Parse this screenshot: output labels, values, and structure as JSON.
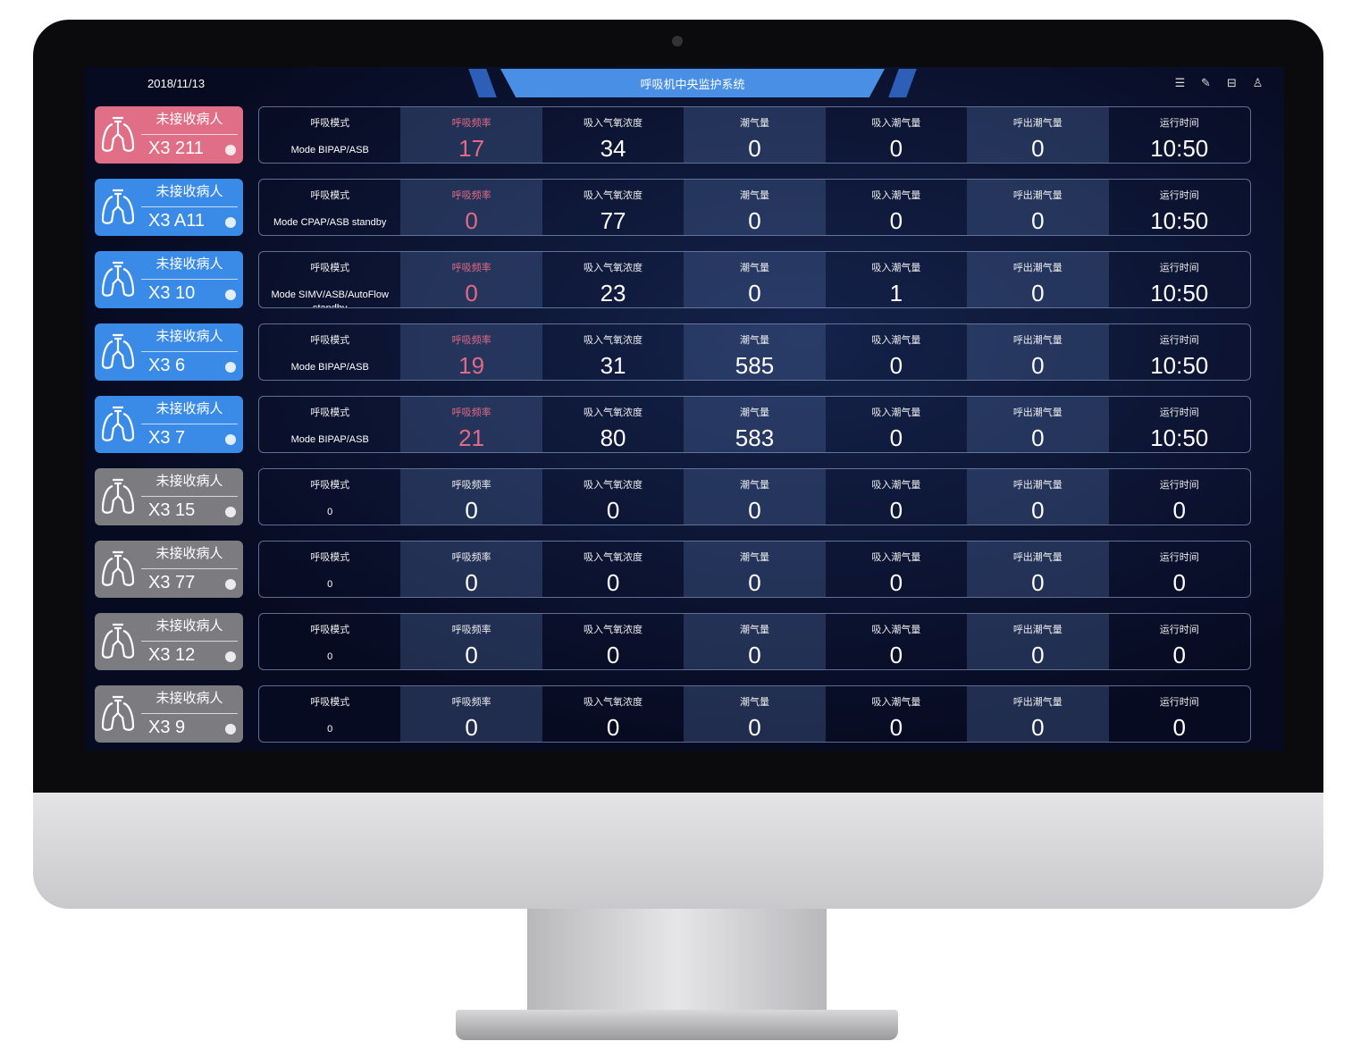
{
  "header": {
    "date": "2018/11/13",
    "title": "呼吸机中央监护系统",
    "tools": [
      "menu-icon",
      "edit-icon",
      "layout-icon",
      "user-icon"
    ]
  },
  "labels": [
    "呼吸模式",
    "呼吸频率",
    "吸入气氧浓度",
    "潮气量",
    "吸入潮气量",
    "呼出潮气量",
    "运行时间"
  ],
  "colors": {
    "alarm": "#e06e87",
    "active": "#3a8ae8",
    "offline": "#7b7b80"
  },
  "rows": [
    {
      "status": "未接收病人",
      "id": "X3 211",
      "state": "pink",
      "mode": "Mode BIPAP/ASB",
      "values": [
        "17",
        "34",
        "0",
        "0",
        "0",
        "10:50"
      ],
      "alarm": true
    },
    {
      "status": "未接收病人",
      "id": "X3 A11",
      "state": "blue",
      "mode": "Mode CPAP/ASB standby",
      "values": [
        "0",
        "77",
        "0",
        "0",
        "0",
        "10:50"
      ],
      "alarm": true
    },
    {
      "status": "未接收病人",
      "id": "X3 10",
      "state": "blue",
      "mode": "Mode SIMV/ASB/AutoFlow standby",
      "values": [
        "0",
        "23",
        "0",
        "1",
        "0",
        "10:50"
      ],
      "alarm": true
    },
    {
      "status": "未接收病人",
      "id": "X3 6",
      "state": "blue",
      "mode": "Mode BIPAP/ASB",
      "values": [
        "19",
        "31",
        "585",
        "0",
        "0",
        "10:50"
      ],
      "alarm": true
    },
    {
      "status": "未接收病人",
      "id": "X3 7",
      "state": "blue",
      "mode": "Mode BIPAP/ASB",
      "values": [
        "21",
        "80",
        "583",
        "0",
        "0",
        "10:50"
      ],
      "alarm": true
    },
    {
      "status": "未接收病人",
      "id": "X3 15",
      "state": "gray",
      "mode": "0",
      "values": [
        "0",
        "0",
        "0",
        "0",
        "0",
        "0"
      ],
      "alarm": false
    },
    {
      "status": "未接收病人",
      "id": "X3 77",
      "state": "gray",
      "mode": "0",
      "values": [
        "0",
        "0",
        "0",
        "0",
        "0",
        "0"
      ],
      "alarm": false
    },
    {
      "status": "未接收病人",
      "id": "X3 12",
      "state": "gray",
      "mode": "0",
      "values": [
        "0",
        "0",
        "0",
        "0",
        "0",
        "0"
      ],
      "alarm": false
    },
    {
      "status": "未接收病人",
      "id": "X3 9",
      "state": "gray",
      "mode": "0",
      "values": [
        "0",
        "0",
        "0",
        "0",
        "0",
        "0"
      ],
      "alarm": false
    }
  ]
}
